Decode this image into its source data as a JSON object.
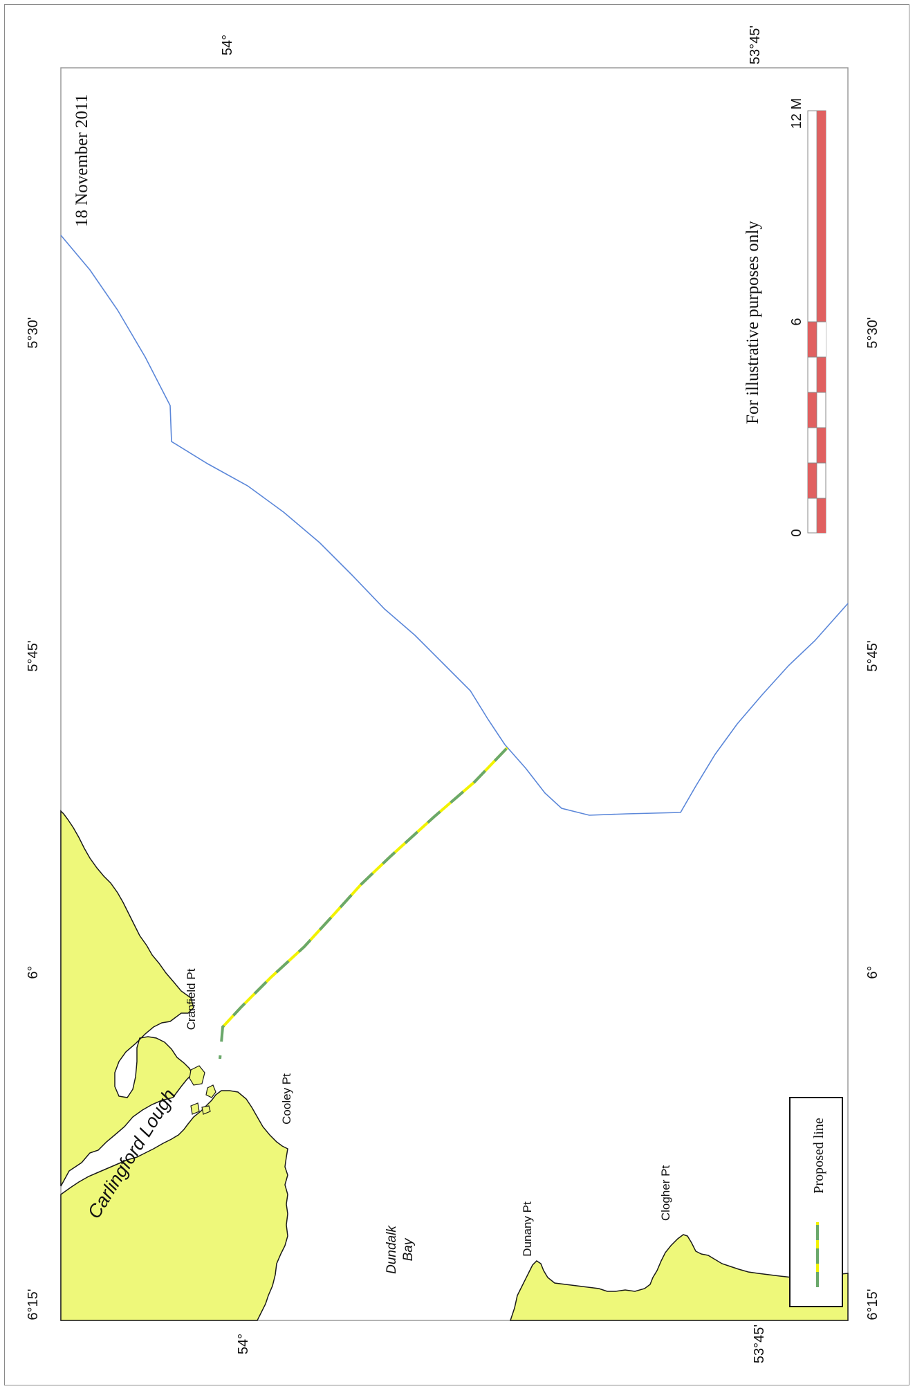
{
  "map": {
    "date": "18 November 2011",
    "disclaimer": "For illustrative purposes only",
    "legend": {
      "line_label": "Proposed line"
    },
    "scale": {
      "labels": [
        "0",
        "6",
        "12 M"
      ]
    },
    "graticule": {
      "top_lat": [
        "54°",
        "53°45'"
      ],
      "bottom_lat": [
        "54°",
        "53°45'"
      ],
      "left_lon": [
        "6°15'",
        "6°",
        "5°45'",
        "5°30'"
      ],
      "right_lon": [
        "6°15'",
        "6°",
        "5°45'",
        "5°30'"
      ]
    },
    "places": {
      "carlingford": "Carlingford Lough",
      "cranfield": "Cranfield Pt",
      "cooley": "Cooley Pt",
      "dundalk_1": "Dundalk",
      "dundalk_2": "Bay",
      "dunany": "Dunany Pt",
      "clogher": "Clogher Pt"
    },
    "colors": {
      "land": "#eef87a",
      "coast": "#1a1a1a",
      "boundary": "#5b87d9",
      "line_yellow": "#f2f200",
      "line_green": "#6aa86a",
      "scale_red": "#e06060"
    }
  }
}
